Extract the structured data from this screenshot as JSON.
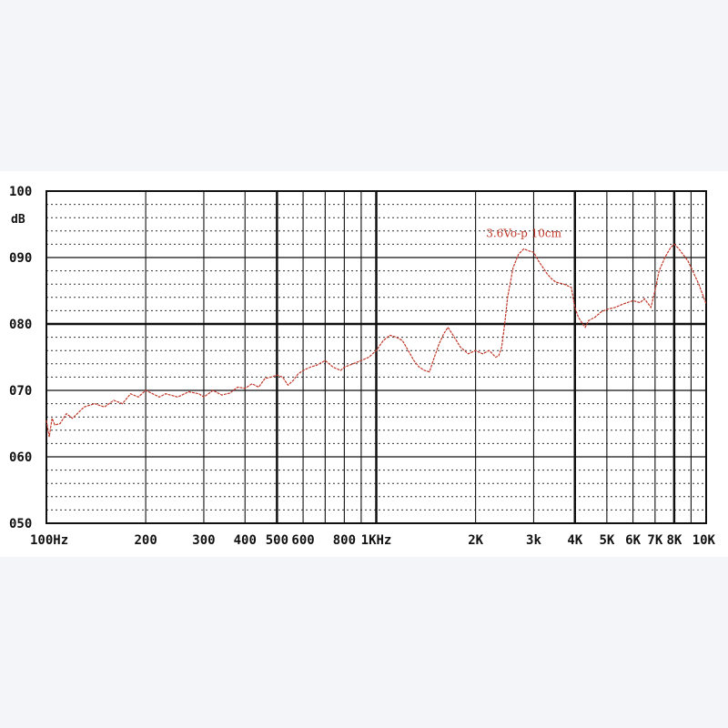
{
  "chart_data": {
    "type": "line",
    "title": "",
    "xlabel": "",
    "ylabel": "dB",
    "x_scale": "log",
    "xlim": [
      100,
      10000
    ],
    "ylim": [
      50,
      100
    ],
    "grid": true,
    "x_tick_labels": [
      {
        "value": 100,
        "label": "100Hz"
      },
      {
        "value": 200,
        "label": "200"
      },
      {
        "value": 300,
        "label": "300"
      },
      {
        "value": 400,
        "label": "400"
      },
      {
        "value": 500,
        "label": "500"
      },
      {
        "value": 600,
        "label": "600"
      },
      {
        "value": 800,
        "label": "800"
      },
      {
        "value": 1000,
        "label": "1KHz"
      },
      {
        "value": 2000,
        "label": "2K"
      },
      {
        "value": 3000,
        "label": "3k"
      },
      {
        "value": 4000,
        "label": "4K"
      },
      {
        "value": 5000,
        "label": "5K"
      },
      {
        "value": 6000,
        "label": "6K"
      },
      {
        "value": 7000,
        "label": "7K"
      },
      {
        "value": 8000,
        "label": "8K"
      },
      {
        "value": 10000,
        "label": "10K"
      }
    ],
    "y_tick_labels": [
      {
        "value": 100,
        "label": "100"
      },
      {
        "value": 90,
        "label": "090"
      },
      {
        "value": 80,
        "label": "080"
      },
      {
        "value": 70,
        "label": "070"
      },
      {
        "value": 60,
        "label": "060"
      },
      {
        "value": 50,
        "label": "050"
      }
    ],
    "annotation": {
      "text": "3.6Vo-p 10cm",
      "x": 2800,
      "y": 93.1
    },
    "series": [
      {
        "color": "#c0392b",
        "x": [
          100,
          102,
          104,
          106,
          110,
          115,
          120,
          130,
          140,
          150,
          160,
          170,
          180,
          190,
          200,
          210,
          220,
          230,
          250,
          270,
          290,
          300,
          320,
          340,
          360,
          380,
          400,
          420,
          440,
          460,
          480,
          500,
          520,
          540,
          560,
          580,
          600,
          630,
          660,
          700,
          740,
          780,
          800,
          850,
          900,
          950,
          1000,
          1050,
          1100,
          1150,
          1200,
          1250,
          1300,
          1350,
          1400,
          1450,
          1500,
          1550,
          1600,
          1650,
          1700,
          1800,
          1900,
          2000,
          2100,
          2200,
          2250,
          2300,
          2350,
          2400,
          2450,
          2500,
          2600,
          2700,
          2800,
          2900,
          3000,
          3100,
          3200,
          3300,
          3400,
          3500,
          3700,
          3900,
          4000,
          4100,
          4200,
          4300,
          4400,
          4600,
          4800,
          5000,
          5300,
          5600,
          6000,
          6300,
          6500,
          6800,
          7000,
          7200,
          7500,
          7800,
          8000,
          8200,
          8500,
          8800,
          9000,
          9500,
          10000
        ],
        "y": [
          65.5,
          63.0,
          65.8,
          64.8,
          65.0,
          66.5,
          65.8,
          67.5,
          68.0,
          67.5,
          68.5,
          68.0,
          69.5,
          69.0,
          70.0,
          69.5,
          69.0,
          69.5,
          69.0,
          69.8,
          69.5,
          69.0,
          70.0,
          69.3,
          69.6,
          70.5,
          70.3,
          71.0,
          70.5,
          71.8,
          72.0,
          72.3,
          72.0,
          70.8,
          71.5,
          72.5,
          73.0,
          73.5,
          73.8,
          74.5,
          73.5,
          73.0,
          73.5,
          74.0,
          74.5,
          75.0,
          76.0,
          77.5,
          78.3,
          78.0,
          77.5,
          76.0,
          74.5,
          73.5,
          73.0,
          72.8,
          75.0,
          77.0,
          78.5,
          79.5,
          78.5,
          76.5,
          75.5,
          76.0,
          75.5,
          76.0,
          75.5,
          75.0,
          75.2,
          76.5,
          80.0,
          84.0,
          88.5,
          90.5,
          91.3,
          91.0,
          90.8,
          89.5,
          88.5,
          87.5,
          86.8,
          86.3,
          86.0,
          85.5,
          82.5,
          81.0,
          80.2,
          79.5,
          80.5,
          81.0,
          81.8,
          82.2,
          82.5,
          83.0,
          83.5,
          83.2,
          83.8,
          82.5,
          85.0,
          88.0,
          90.0,
          91.5,
          92.0,
          91.5,
          90.5,
          89.5,
          88.5,
          86.0,
          83.0
        ]
      }
    ]
  }
}
